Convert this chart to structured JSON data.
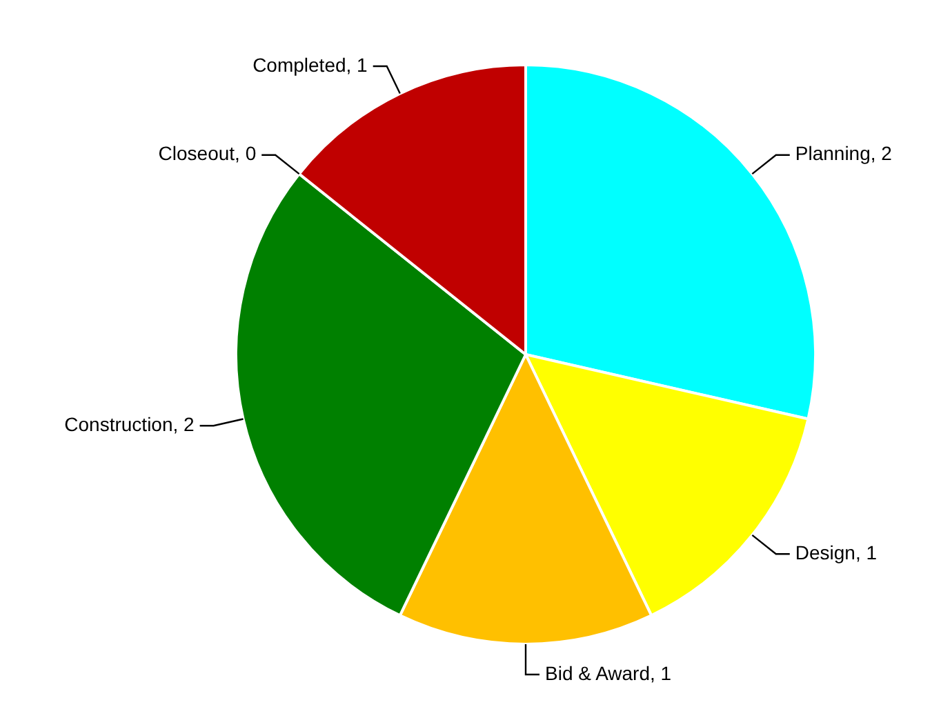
{
  "chart_data": {
    "type": "pie",
    "categories": [
      "Planning",
      "Design",
      "Bid & Award",
      "Construction",
      "Closeout",
      "Completed"
    ],
    "values": [
      2,
      1,
      1,
      2,
      0,
      1
    ],
    "colors": [
      "#00ffff",
      "#ffff00",
      "#ffc000",
      "#008000",
      "#ffffff",
      "#c00000"
    ],
    "value_labels": [
      "2",
      "1",
      "1",
      "2",
      "0",
      "1"
    ]
  }
}
